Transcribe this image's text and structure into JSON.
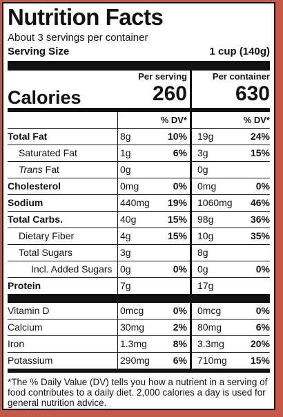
{
  "title": "Nutrition Facts",
  "servings_per_container": "About 3 servings per container",
  "serving_size": {
    "label": "Serving Size",
    "value": "1 cup (140g)"
  },
  "calories": {
    "label": "Calories",
    "per_serving_label": "Per serving",
    "per_container_label": "Per container",
    "per_serving": "260",
    "per_container": "630"
  },
  "dv_header": "% DV*",
  "nutrients": [
    {
      "name": "Total Fat",
      "bold": true,
      "indent": 0,
      "s_amt": "8g",
      "s_dv": "10%",
      "c_amt": "19g",
      "c_dv": "24%"
    },
    {
      "name": "Saturated Fat",
      "bold": false,
      "indent": 1,
      "s_amt": "1g",
      "s_dv": "6%",
      "c_amt": "3g",
      "c_dv": "15%"
    },
    {
      "name_italic": "Trans",
      "name": " Fat",
      "bold": false,
      "indent": 1,
      "s_amt": "0g",
      "s_dv": "",
      "c_amt": "0g",
      "c_dv": ""
    },
    {
      "name": "Cholesterol",
      "bold": true,
      "indent": 0,
      "s_amt": "0mg",
      "s_dv": "0%",
      "c_amt": "0mg",
      "c_dv": "0%"
    },
    {
      "name": "Sodium",
      "bold": true,
      "indent": 0,
      "s_amt": "440mg",
      "s_dv": "19%",
      "c_amt": "1060mg",
      "c_dv": "46%"
    },
    {
      "name": "Total Carbs.",
      "bold": true,
      "indent": 0,
      "s_amt": "40g",
      "s_dv": "15%",
      "c_amt": "98g",
      "c_dv": "36%"
    },
    {
      "name": "Dietary Fiber",
      "bold": false,
      "indent": 1,
      "s_amt": "4g",
      "s_dv": "15%",
      "c_amt": "10g",
      "c_dv": "35%"
    },
    {
      "name": "Total Sugars",
      "bold": false,
      "indent": 1,
      "s_amt": "3g",
      "s_dv": "",
      "c_amt": "8g",
      "c_dv": ""
    },
    {
      "name": "Incl. Added Sugars",
      "bold": false,
      "indent": 2,
      "s_amt": "0g",
      "s_dv": "0%",
      "c_amt": "0g",
      "c_dv": "0%"
    },
    {
      "name": "Protein",
      "bold": true,
      "indent": 0,
      "s_amt": "7g",
      "s_dv": "",
      "c_amt": "17g",
      "c_dv": ""
    }
  ],
  "vitamins": [
    {
      "name": "Vitamin D",
      "s_amt": "0mcg",
      "s_dv": "0%",
      "c_amt": "0mcg",
      "c_dv": "0%"
    },
    {
      "name": "Calcium",
      "s_amt": "30mg",
      "s_dv": "2%",
      "c_amt": "80mg",
      "c_dv": "6%"
    },
    {
      "name": "Iron",
      "s_amt": "1.3mg",
      "s_dv": "8%",
      "c_amt": "3.3mg",
      "c_dv": "20%"
    },
    {
      "name": "Potassium",
      "s_amt": "290mg",
      "s_dv": "6%",
      "c_amt": "710mg",
      "c_dv": "15%"
    }
  ],
  "footnote": "*The % Daily Value (DV) tells you how a nutrient in a serving of food contributes to a daily diet. 2,000 calories a day is used for general nutrition advice.",
  "colors": {
    "background": "#c4584a",
    "label": "#ffffff",
    "ink": "#111111"
  }
}
